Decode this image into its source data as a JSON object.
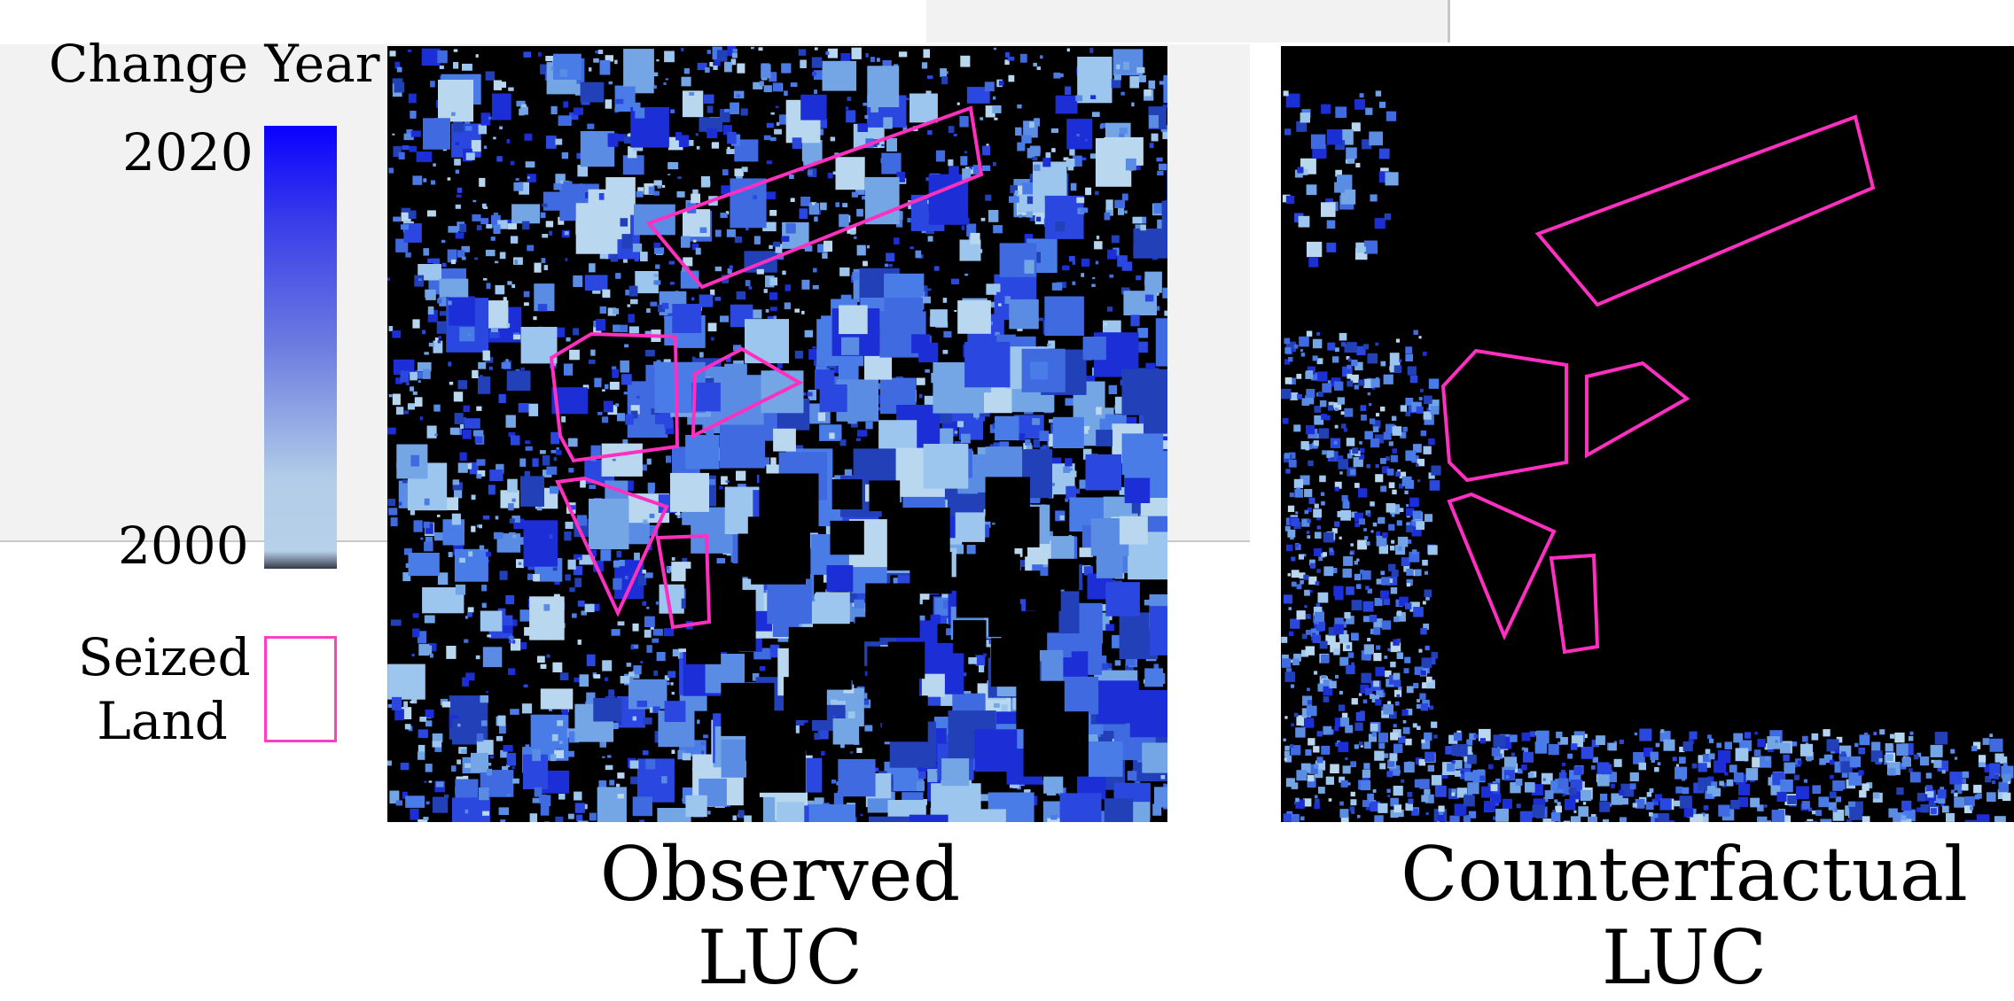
{
  "legend": {
    "title": "Change Year",
    "tick_top": "2020",
    "tick_bottom": "2000",
    "colors": {
      "top": "#0a00ff",
      "mid": "#6c7de0",
      "bottom": "#b3cde8"
    },
    "seized_label_line1": "Seized",
    "seized_label_line2": "Land",
    "seized_color": "#ff3fbf"
  },
  "panels": [
    {
      "caption_line1": "Observed",
      "caption_line2": "LUC"
    },
    {
      "caption_line1": "Counterfactual",
      "caption_line2": "LUC"
    }
  ]
}
